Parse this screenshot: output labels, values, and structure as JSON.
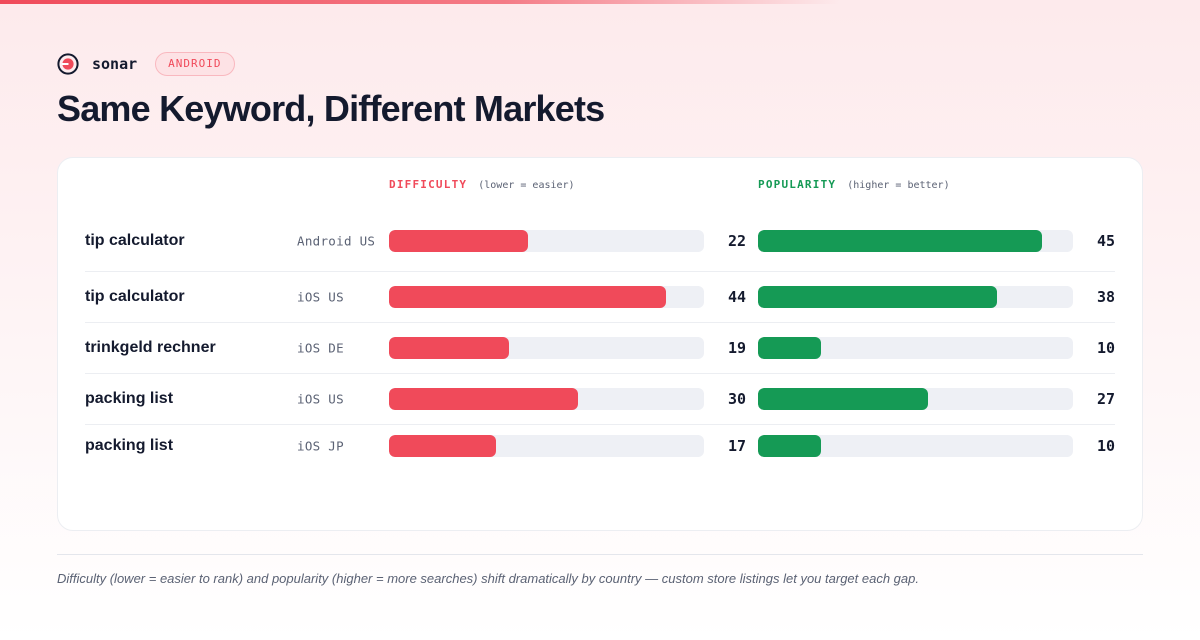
{
  "brand": {
    "name": "sonar",
    "platform_badge": "ANDROID"
  },
  "title": "Same Keyword, Different Markets",
  "columns": {
    "difficulty": {
      "label": "DIFFICULTY",
      "hint": "(lower = easier)"
    },
    "popularity": {
      "label": "POPULARITY",
      "hint": "(higher = better)"
    }
  },
  "colors": {
    "accent": "#f04a5a",
    "difficulty_bar": "#f04a5a",
    "popularity_bar": "#159a55",
    "track": "#eef0f5",
    "text": "#141a2e",
    "muted": "#5b6274"
  },
  "chart_data": {
    "type": "bar",
    "orientation": "horizontal",
    "scale": {
      "difficulty_max": 50,
      "popularity_max": 50
    },
    "categories": [
      "tip calculator — Android US",
      "tip calculator — iOS US",
      "trinkgeld rechner — iOS DE",
      "packing list — iOS US",
      "packing list — iOS JP"
    ],
    "rows": [
      {
        "keyword": "tip calculator",
        "market": "Android US",
        "difficulty": 22,
        "popularity": 45
      },
      {
        "keyword": "tip calculator",
        "market": "iOS US",
        "difficulty": 44,
        "popularity": 38
      },
      {
        "keyword": "trinkgeld rechner",
        "market": "iOS DE",
        "difficulty": 19,
        "popularity": 10
      },
      {
        "keyword": "packing list",
        "market": "iOS US",
        "difficulty": 30,
        "popularity": 27
      },
      {
        "keyword": "packing list",
        "market": "iOS JP",
        "difficulty": 17,
        "popularity": 10
      }
    ],
    "series": [
      {
        "name": "DIFFICULTY",
        "values": [
          22,
          44,
          19,
          30,
          17
        ]
      },
      {
        "name": "POPULARITY",
        "values": [
          45,
          38,
          10,
          27,
          10
        ]
      }
    ],
    "grid": false,
    "legend": "top"
  },
  "footnote": "Difficulty (lower = easier to rank) and popularity (higher = more searches) shift dramatically by country — custom store listings let you target each gap."
}
